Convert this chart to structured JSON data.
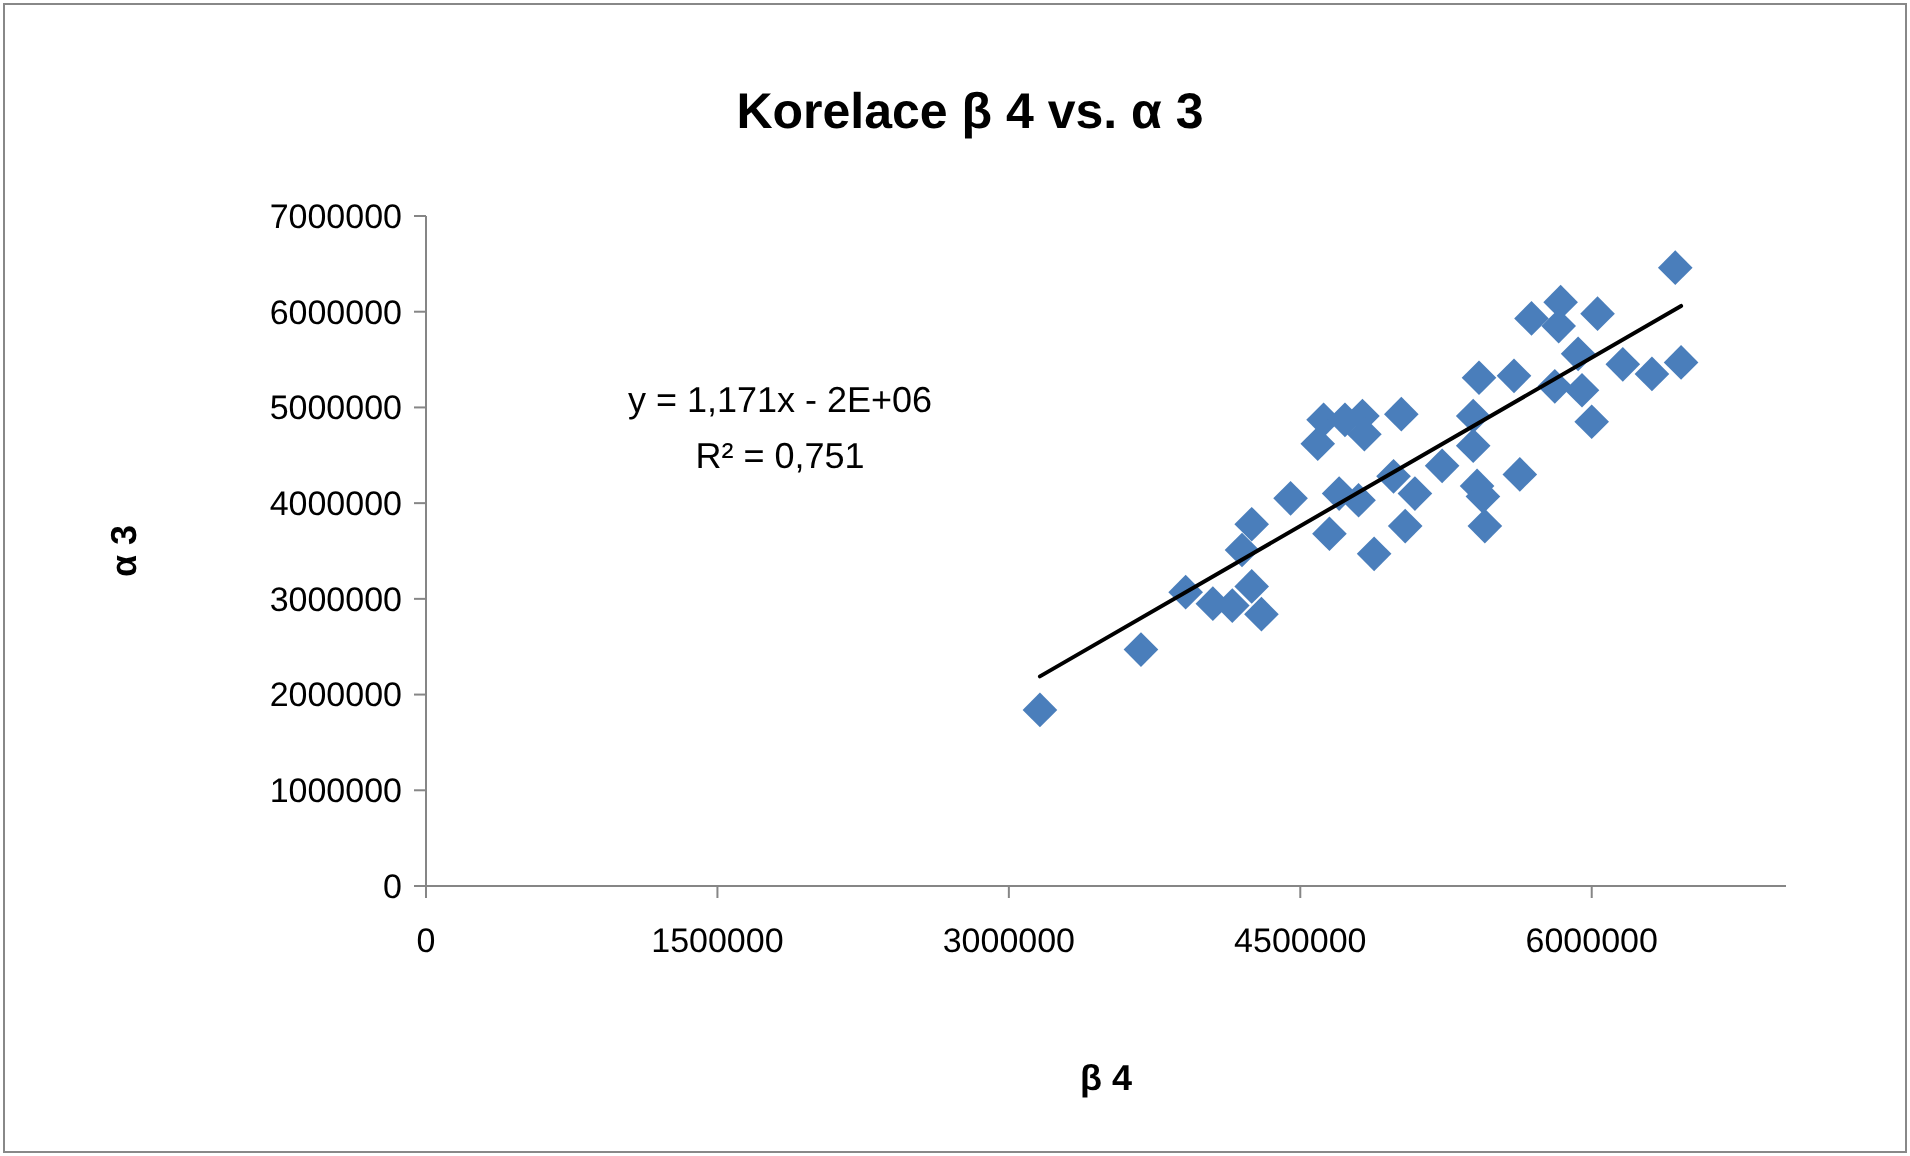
{
  "chart_data": {
    "type": "scatter",
    "title": "Korelace β 4 vs. α 3",
    "xlabel": "β 4",
    "ylabel": "α 3",
    "xlim": [
      0,
      7000000
    ],
    "xticks": [
      0,
      1500000,
      3000000,
      4500000,
      6000000
    ],
    "ylim": [
      0,
      7000000
    ],
    "yticks": [
      0,
      1000000,
      2000000,
      3000000,
      4000000,
      5000000,
      6000000,
      7000000
    ],
    "grid": false,
    "series": [
      {
        "color": "#4a7ebb",
        "marker": "diamond",
        "x": [
          3160000,
          3680000,
          3910000,
          4050000,
          4150000,
          4250000,
          4200000,
          4250000,
          4300000,
          4450000,
          4590000,
          4620000,
          4730000,
          4820000,
          4830000,
          4700000,
          4800000,
          4650000,
          4880000,
          5020000,
          5390000,
          5390000,
          5230000,
          4980000,
          5090000,
          5410000,
          5440000,
          5630000,
          5450000,
          5040000,
          5420000,
          5600000,
          5810000,
          5950000,
          6000000,
          5690000,
          5840000,
          5830000,
          6030000,
          5930000,
          6160000,
          6310000,
          6460000,
          6430000
        ],
        "values": [
          1840000,
          2470000,
          3070000,
          2950000,
          2930000,
          3780000,
          3510000,
          3130000,
          2840000,
          4050000,
          4620000,
          4870000,
          4870000,
          4910000,
          4720000,
          4100000,
          4030000,
          3680000,
          3470000,
          4930000,
          4910000,
          4600000,
          4390000,
          4280000,
          4100000,
          4180000,
          4070000,
          4300000,
          3760000,
          3760000,
          5310000,
          5330000,
          5220000,
          5180000,
          4850000,
          5930000,
          6100000,
          5850000,
          5980000,
          5560000,
          5450000,
          5350000,
          5470000,
          6460000
        ]
      },
      {
        "type": "line",
        "color": "#000000",
        "line_style": "solid",
        "marker": "none",
        "x": [
          3160000,
          6460000
        ],
        "values": [
          2190000,
          6060000
        ]
      }
    ],
    "annotations": [
      "y = 1,171x - 2E+06",
      "R² = 0,751"
    ]
  }
}
